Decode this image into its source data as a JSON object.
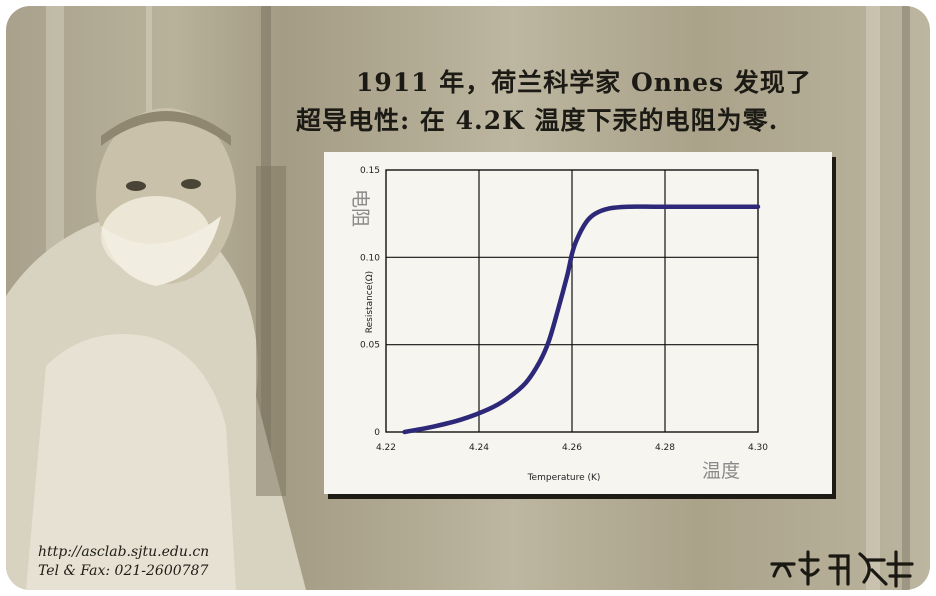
{
  "caption": {
    "line1": "1911 年，荷兰科学家 Onnes 发现了",
    "line2": "超导电性: 在 4.2K 温度下汞的电阻为零."
  },
  "footer": {
    "url": "http://asclab.sjtu.edu.cn",
    "tel": "Tel & Fax: 021-2600787"
  },
  "stamp": "大而超导",
  "colors": {
    "curve": "#2d2878",
    "panel": "#f6f5f0",
    "card": "#aaa289"
  },
  "chart_data": {
    "type": "line",
    "title": "",
    "xlabel": "Temperature (K)",
    "ylabel": "Resistance(Ω)",
    "xlabel_cn": "温度",
    "ylabel_cn": "电阻",
    "xlim": [
      4.22,
      4.3
    ],
    "ylim": [
      0,
      0.15
    ],
    "xticks": [
      "4.22",
      "4.24",
      "4.26",
      "4.28",
      "4.30"
    ],
    "yticks": [
      "0",
      "0.05",
      "0.10",
      "0.15"
    ],
    "grid": true,
    "series": [
      {
        "x": [
          4.224,
          4.23,
          4.236,
          4.242,
          4.246,
          4.25,
          4.253,
          4.255,
          4.257,
          4.259,
          4.26,
          4.261,
          4.263,
          4.265,
          4.268,
          4.272,
          4.278,
          4.285,
          4.295,
          4.3
        ],
        "values": [
          0.0,
          0.003,
          0.007,
          0.013,
          0.019,
          0.028,
          0.04,
          0.052,
          0.07,
          0.09,
          0.102,
          0.11,
          0.12,
          0.125,
          0.128,
          0.129,
          0.129,
          0.129,
          0.129,
          0.129
        ]
      }
    ]
  }
}
